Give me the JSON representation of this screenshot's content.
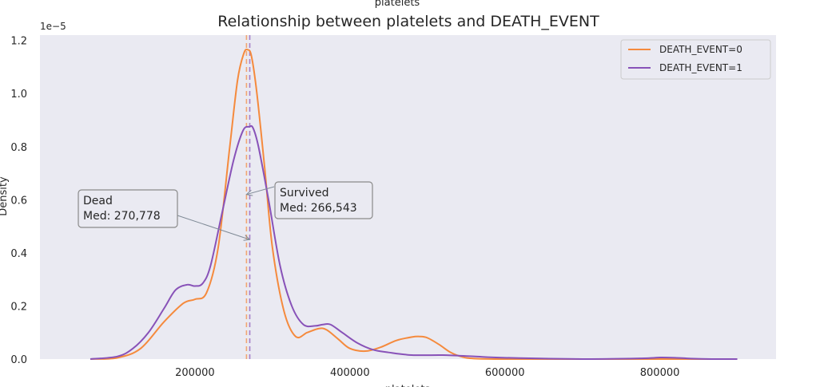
{
  "chart_data": {
    "type": "line",
    "title": "Relationship between platelets and DEATH_EVENT",
    "top_label": "platelets",
    "xlabel": "platelets",
    "ylabel": "Density",
    "y_offset_text": "1e−5",
    "xlim": [
      0,
      950000
    ],
    "ylim": [
      0,
      1.22
    ],
    "x_ticks": [
      200000,
      400000,
      600000,
      800000
    ],
    "x_tick_labels": [
      "200000",
      "400000",
      "600000",
      "800000"
    ],
    "y_ticks": [
      0.0,
      0.2,
      0.4,
      0.6,
      0.8,
      1.0,
      1.2
    ],
    "y_tick_labels": [
      "0.0",
      "0.2",
      "0.4",
      "0.6",
      "0.8",
      "1.0",
      "1.2"
    ],
    "grid": false,
    "background": "#eaeaf2",
    "legend_position": "top-right",
    "series": [
      {
        "name": "DEATH_EVENT=0",
        "color": "#f58a3d",
        "median": 266543,
        "x": [
          65000,
          100000,
          130000,
          160000,
          185000,
          200000,
          215000,
          230000,
          245000,
          255000,
          263000,
          268000,
          273000,
          280000,
          290000,
          300000,
          315000,
          330000,
          345000,
          360000,
          370000,
          385000,
          400000,
          420000,
          440000,
          460000,
          480000,
          490000,
          500000,
          515000,
          530000,
          545000,
          560000,
          600000,
          700000,
          800000,
          900000
        ],
        "y": [
          0.0,
          0.005,
          0.04,
          0.14,
          0.21,
          0.225,
          0.25,
          0.42,
          0.8,
          1.05,
          1.15,
          1.165,
          1.14,
          1.0,
          0.72,
          0.42,
          0.18,
          0.085,
          0.1,
          0.115,
          0.11,
          0.075,
          0.04,
          0.03,
          0.045,
          0.07,
          0.083,
          0.085,
          0.08,
          0.055,
          0.025,
          0.008,
          0.002,
          0.0,
          0.0,
          0.0,
          0.0
        ]
      },
      {
        "name": "DEATH_EVENT=1",
        "color": "#8852b8",
        "median": 270778,
        "x": [
          65000,
          100000,
          120000,
          140000,
          160000,
          175000,
          190000,
          200000,
          210000,
          220000,
          235000,
          250000,
          262000,
          270000,
          275000,
          282000,
          295000,
          310000,
          325000,
          340000,
          355000,
          365000,
          375000,
          390000,
          410000,
          430000,
          450000,
          480000,
          520000,
          560000,
          600000,
          700000,
          780000,
          800000,
          820000,
          840000,
          870000,
          900000
        ],
        "y": [
          0.0,
          0.01,
          0.04,
          0.1,
          0.19,
          0.26,
          0.28,
          0.275,
          0.285,
          0.35,
          0.55,
          0.75,
          0.86,
          0.875,
          0.87,
          0.8,
          0.6,
          0.35,
          0.2,
          0.13,
          0.125,
          0.13,
          0.13,
          0.1,
          0.06,
          0.035,
          0.025,
          0.015,
          0.015,
          0.01,
          0.005,
          0.0,
          0.003,
          0.006,
          0.005,
          0.002,
          0.0,
          0.0
        ]
      }
    ],
    "annotations": [
      {
        "id": "survived",
        "line1": "Survived",
        "line2": "Med: 266,543",
        "arrow_x": 266543,
        "arrow_y": 0.62
      },
      {
        "id": "dead",
        "line1": "Dead",
        "line2": "Med: 270,778",
        "arrow_x": 270778,
        "arrow_y": 0.45
      }
    ]
  }
}
